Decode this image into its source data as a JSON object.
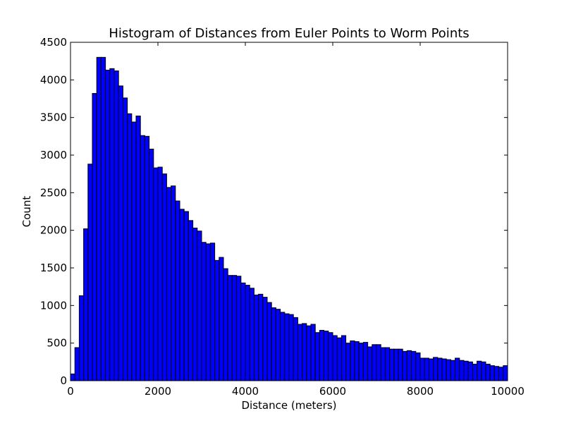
{
  "chart_data": {
    "type": "bar",
    "title": "Histogram of Distances from Euler Points to Worm Points",
    "xlabel": "Distance (meters)",
    "ylabel": "Count",
    "xlim": [
      0,
      10000
    ],
    "ylim": [
      0,
      4500
    ],
    "bin_width": 100,
    "bar_color": "#0000ff",
    "edge_color": "#000000",
    "grid": false,
    "x_ticks": [
      0,
      2000,
      4000,
      6000,
      8000,
      10000
    ],
    "x_tick_labels": [
      "0",
      "2000",
      "4000",
      "6000",
      "8000",
      "10000"
    ],
    "y_ticks": [
      0,
      500,
      1000,
      1500,
      2000,
      2500,
      3000,
      3500,
      4000,
      4500
    ],
    "y_tick_labels": [
      "0",
      "500",
      "1000",
      "1500",
      "2000",
      "2500",
      "3000",
      "3500",
      "4000",
      "4500"
    ],
    "values": [
      90,
      440,
      1130,
      2020,
      2880,
      3820,
      4300,
      4300,
      4130,
      4150,
      4120,
      3920,
      3760,
      3550,
      3440,
      3520,
      3260,
      3250,
      3080,
      2830,
      2840,
      2750,
      2570,
      2590,
      2390,
      2280,
      2250,
      2130,
      2030,
      1990,
      1840,
      1820,
      1830,
      1600,
      1640,
      1490,
      1400,
      1400,
      1390,
      1300,
      1270,
      1230,
      1140,
      1150,
      1110,
      1040,
      970,
      950,
      910,
      890,
      880,
      840,
      750,
      760,
      730,
      750,
      640,
      670,
      660,
      640,
      600,
      570,
      600,
      500,
      530,
      520,
      500,
      510,
      450,
      480,
      480,
      440,
      440,
      420,
      420,
      420,
      390,
      400,
      390,
      370,
      300,
      300,
      290,
      310,
      300,
      290,
      280,
      270,
      300,
      270,
      260,
      250,
      220,
      260,
      250,
      220,
      200,
      190,
      180,
      200
    ]
  }
}
